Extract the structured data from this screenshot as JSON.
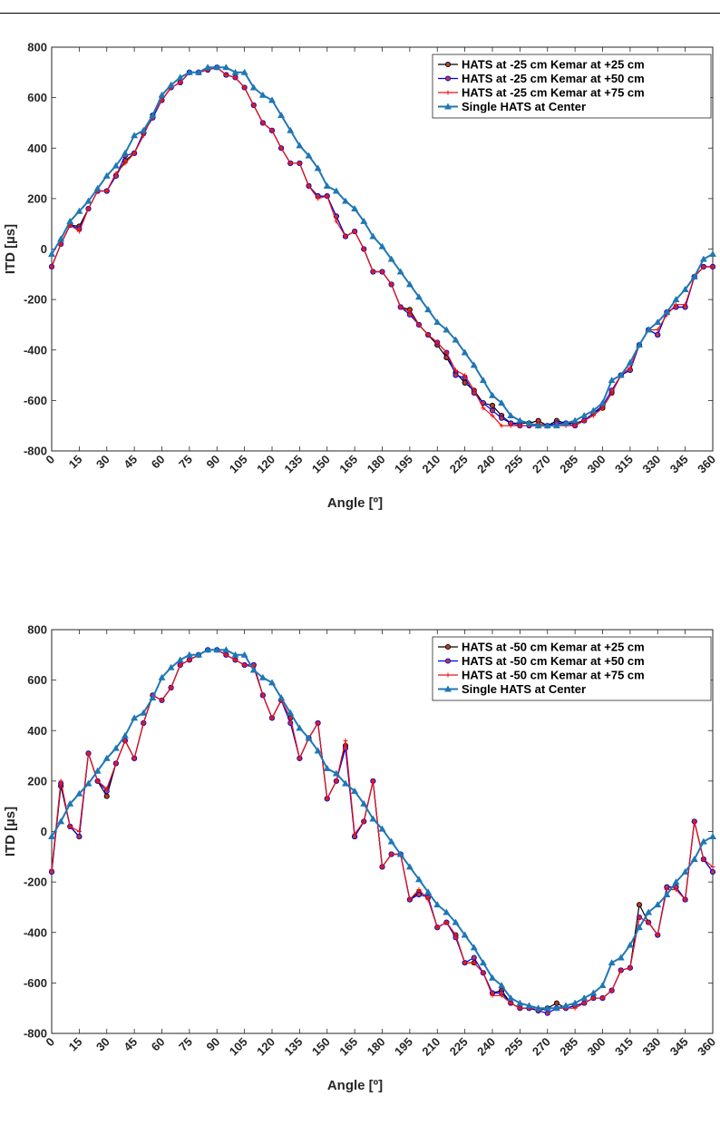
{
  "chart_data": [
    {
      "type": "line",
      "title": "",
      "xlabel": "Angle [º]",
      "ylabel": "ITD [µs]",
      "xlim": [
        0,
        360
      ],
      "ylim": [
        -800,
        800
      ],
      "xticks": [
        0,
        15,
        30,
        45,
        60,
        75,
        90,
        105,
        120,
        135,
        150,
        165,
        180,
        195,
        210,
        225,
        240,
        255,
        270,
        285,
        300,
        315,
        330,
        345,
        360
      ],
      "yticks": [
        -800,
        -600,
        -400,
        -200,
        0,
        200,
        400,
        600,
        800
      ],
      "grid": false,
      "legend_position": "top-right",
      "x": [
        0,
        5,
        10,
        15,
        20,
        25,
        30,
        35,
        40,
        45,
        50,
        55,
        60,
        65,
        70,
        75,
        80,
        85,
        90,
        95,
        100,
        105,
        110,
        115,
        120,
        125,
        130,
        135,
        140,
        145,
        150,
        155,
        160,
        165,
        170,
        175,
        180,
        185,
        190,
        195,
        200,
        205,
        210,
        215,
        220,
        225,
        230,
        235,
        240,
        245,
        250,
        255,
        260,
        265,
        270,
        275,
        280,
        285,
        290,
        295,
        300,
        305,
        310,
        315,
        320,
        325,
        330,
        335,
        340,
        345,
        350,
        355,
        360
      ],
      "series": [
        {
          "name": "HATS at -25 cm Kemar at +25 cm",
          "color": "#000000",
          "marker": "circle",
          "values": [
            -70,
            20,
            95,
            90,
            160,
            230,
            230,
            290,
            350,
            380,
            460,
            530,
            590,
            640,
            660,
            700,
            700,
            710,
            720,
            690,
            680,
            640,
            570,
            500,
            470,
            400,
            340,
            340,
            250,
            210,
            210,
            130,
            50,
            70,
            0,
            -90,
            -90,
            -140,
            -230,
            -240,
            -300,
            -340,
            -380,
            -430,
            -490,
            -530,
            -560,
            -610,
            -620,
            -660,
            -690,
            -690,
            -690,
            -680,
            -700,
            -680,
            -690,
            -690,
            -680,
            -650,
            -630,
            -570,
            -500,
            -480,
            -380,
            -320,
            -340,
            -250,
            -230,
            -230,
            -110,
            -70,
            -70
          ]
        },
        {
          "name": "HATS at -25 cm Kemar at +50 cm",
          "color": "#0000ee",
          "marker": "circle",
          "values": [
            -70,
            20,
            95,
            80,
            160,
            230,
            230,
            290,
            370,
            380,
            460,
            520,
            590,
            640,
            660,
            700,
            700,
            710,
            720,
            690,
            680,
            640,
            570,
            500,
            470,
            400,
            340,
            340,
            250,
            210,
            210,
            130,
            50,
            70,
            0,
            -90,
            -90,
            -140,
            -230,
            -260,
            -300,
            -340,
            -370,
            -410,
            -500,
            -510,
            -570,
            -610,
            -640,
            -670,
            -690,
            -700,
            -700,
            -700,
            -700,
            -690,
            -690,
            -700,
            -680,
            -650,
            -620,
            -560,
            -500,
            -480,
            -380,
            -320,
            -340,
            -250,
            -230,
            -230,
            -110,
            -70,
            -70
          ]
        },
        {
          "name": "HATS at -25 cm Kemar at +75 cm",
          "color": "#ee1111",
          "marker": "plus",
          "values": [
            -70,
            20,
            95,
            70,
            160,
            230,
            230,
            300,
            340,
            380,
            450,
            530,
            590,
            640,
            660,
            700,
            700,
            710,
            720,
            690,
            680,
            640,
            570,
            500,
            470,
            400,
            340,
            340,
            250,
            200,
            210,
            110,
            50,
            70,
            0,
            -90,
            -90,
            -140,
            -230,
            -250,
            -300,
            -340,
            -370,
            -410,
            -480,
            -500,
            -560,
            -630,
            -660,
            -700,
            -700,
            -700,
            -700,
            -690,
            -700,
            -700,
            -700,
            -700,
            -680,
            -660,
            -630,
            -570,
            -500,
            -470,
            -380,
            -320,
            -320,
            -260,
            -220,
            -220,
            -110,
            -70,
            -70
          ]
        },
        {
          "name": "Single HATS at Center",
          "color": "#1f77b4",
          "marker": "triangle",
          "values": [
            -20,
            40,
            110,
            150,
            190,
            240,
            290,
            330,
            380,
            450,
            470,
            530,
            610,
            650,
            680,
            700,
            700,
            720,
            720,
            720,
            700,
            700,
            640,
            610,
            590,
            530,
            470,
            410,
            370,
            320,
            250,
            230,
            190,
            160,
            110,
            50,
            10,
            -40,
            -90,
            -140,
            -190,
            -240,
            -290,
            -320,
            -360,
            -410,
            -460,
            -520,
            -580,
            -610,
            -660,
            -680,
            -690,
            -700,
            -700,
            -700,
            -690,
            -680,
            -660,
            -640,
            -610,
            -520,
            -500,
            -450,
            -380,
            -320,
            -290,
            -250,
            -200,
            -160,
            -110,
            -40,
            -20
          ]
        }
      ]
    },
    {
      "type": "line",
      "title": "",
      "xlabel": "Angle [º]",
      "ylabel": "ITD [µs]",
      "xlim": [
        0,
        360
      ],
      "ylim": [
        -800,
        800
      ],
      "xticks": [
        0,
        15,
        30,
        45,
        60,
        75,
        90,
        105,
        120,
        135,
        150,
        165,
        180,
        195,
        210,
        225,
        240,
        255,
        270,
        285,
        300,
        315,
        330,
        345,
        360
      ],
      "yticks": [
        -800,
        -600,
        -400,
        -200,
        0,
        200,
        400,
        600,
        800
      ],
      "grid": false,
      "legend_position": "top-right",
      "x": [
        0,
        5,
        10,
        15,
        20,
        25,
        30,
        35,
        40,
        45,
        50,
        55,
        60,
        65,
        70,
        75,
        80,
        85,
        90,
        95,
        100,
        105,
        110,
        115,
        120,
        125,
        130,
        135,
        140,
        145,
        150,
        155,
        160,
        165,
        170,
        175,
        180,
        185,
        190,
        195,
        200,
        205,
        210,
        215,
        220,
        225,
        230,
        235,
        240,
        245,
        250,
        255,
        260,
        265,
        270,
        275,
        280,
        285,
        290,
        295,
        300,
        305,
        310,
        315,
        320,
        325,
        330,
        335,
        340,
        345,
        350,
        355,
        360
      ],
      "series": [
        {
          "name": "HATS at -50 cm Kemar at +25 cm",
          "color": "#000000",
          "marker": "circle",
          "values": [
            -160,
            180,
            20,
            -20,
            310,
            200,
            140,
            270,
            360,
            290,
            430,
            540,
            520,
            570,
            660,
            680,
            700,
            720,
            720,
            700,
            680,
            660,
            660,
            540,
            450,
            520,
            450,
            290,
            370,
            430,
            130,
            200,
            340,
            -20,
            40,
            200,
            -140,
            -90,
            -90,
            -270,
            -240,
            -260,
            -380,
            -360,
            -410,
            -520,
            -520,
            -560,
            -640,
            -630,
            -680,
            -700,
            -700,
            -710,
            -700,
            -680,
            -700,
            -690,
            -680,
            -660,
            -660,
            -630,
            -550,
            -540,
            -290,
            -360,
            -410,
            -220,
            -220,
            -270,
            40,
            -110,
            -160
          ]
        },
        {
          "name": "HATS at -50 cm Kemar at +50 cm",
          "color": "#0000ee",
          "marker": "circle",
          "values": [
            -160,
            190,
            20,
            -20,
            310,
            200,
            160,
            270,
            360,
            290,
            430,
            540,
            520,
            570,
            660,
            680,
            700,
            720,
            720,
            700,
            680,
            660,
            660,
            540,
            450,
            520,
            430,
            290,
            370,
            430,
            130,
            200,
            330,
            -20,
            40,
            200,
            -140,
            -90,
            -90,
            -270,
            -250,
            -260,
            -380,
            -360,
            -420,
            -520,
            -500,
            -560,
            -640,
            -640,
            -680,
            -700,
            -700,
            -710,
            -720,
            -700,
            -700,
            -690,
            -680,
            -660,
            -660,
            -630,
            -550,
            -540,
            -340,
            -360,
            -410,
            -220,
            -220,
            -270,
            40,
            -110,
            -160
          ]
        },
        {
          "name": "HATS at -50 cm Kemar at +75 cm",
          "color": "#ee1111",
          "marker": "plus",
          "values": [
            -150,
            200,
            20,
            0,
            310,
            200,
            170,
            270,
            360,
            290,
            430,
            540,
            520,
            570,
            660,
            680,
            700,
            720,
            720,
            700,
            680,
            660,
            650,
            540,
            450,
            520,
            450,
            290,
            370,
            430,
            130,
            200,
            360,
            -10,
            40,
            200,
            -140,
            -90,
            -90,
            -270,
            -230,
            -270,
            -380,
            -360,
            -410,
            -520,
            -520,
            -560,
            -650,
            -650,
            -680,
            -700,
            -700,
            -700,
            -700,
            -700,
            -700,
            -700,
            -680,
            -660,
            -660,
            -630,
            -550,
            -540,
            -340,
            -360,
            -410,
            -230,
            -230,
            -270,
            40,
            -110,
            -140
          ]
        },
        {
          "name": "Single HATS at Center",
          "color": "#1f77b4",
          "marker": "triangle",
          "values": [
            -20,
            40,
            110,
            150,
            190,
            240,
            290,
            330,
            380,
            450,
            470,
            530,
            610,
            650,
            680,
            700,
            700,
            720,
            720,
            720,
            700,
            700,
            640,
            610,
            590,
            530,
            470,
            410,
            370,
            320,
            250,
            230,
            190,
            160,
            110,
            50,
            10,
            -40,
            -90,
            -140,
            -190,
            -240,
            -290,
            -320,
            -360,
            -410,
            -460,
            -520,
            -580,
            -610,
            -660,
            -680,
            -690,
            -700,
            -700,
            -700,
            -690,
            -680,
            -660,
            -640,
            -610,
            -520,
            -500,
            -450,
            -380,
            -320,
            -290,
            -250,
            -200,
            -160,
            -110,
            -40,
            -20
          ]
        }
      ]
    }
  ]
}
